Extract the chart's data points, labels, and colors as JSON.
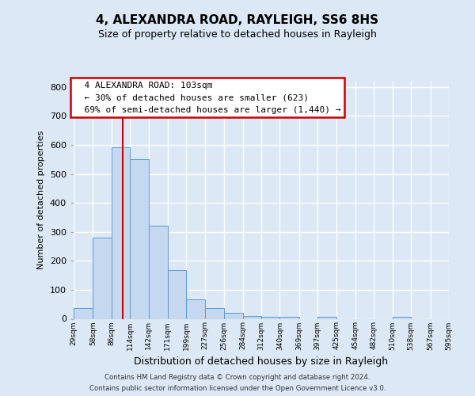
{
  "title": "4, ALEXANDRA ROAD, RAYLEIGH, SS6 8HS",
  "subtitle": "Size of property relative to detached houses in Rayleigh",
  "xlabel": "Distribution of detached houses by size in Rayleigh",
  "ylabel": "Number of detached properties",
  "bin_edges": [
    29,
    58,
    86,
    114,
    142,
    171,
    199,
    227,
    256,
    284,
    312,
    340,
    369,
    397,
    425,
    454,
    482,
    510,
    538,
    567,
    595
  ],
  "bar_heights": [
    37,
    280,
    593,
    550,
    320,
    168,
    68,
    37,
    20,
    10,
    8,
    8,
    0,
    8,
    0,
    0,
    0,
    8,
    0,
    0
  ],
  "bar_color": "#c5d8f0",
  "bar_edge_color": "#5b9bd5",
  "property_size": 103,
  "vline_color": "#cc0000",
  "ylim": [
    0,
    820
  ],
  "yticks": [
    0,
    100,
    200,
    300,
    400,
    500,
    600,
    700,
    800
  ],
  "annotation_title": "4 ALEXANDRA ROAD: 103sqm",
  "annotation_line1": "← 30% of detached houses are smaller (623)",
  "annotation_line2": "69% of semi-detached houses are larger (1,440) →",
  "annotation_box_color": "#ffffff",
  "annotation_box_edge_color": "#cc0000",
  "footer_line1": "Contains HM Land Registry data © Crown copyright and database right 2024.",
  "footer_line2": "Contains public sector information licensed under the Open Government Licence v3.0.",
  "background_color": "#dce8f5",
  "grid_color": "#ffffff"
}
